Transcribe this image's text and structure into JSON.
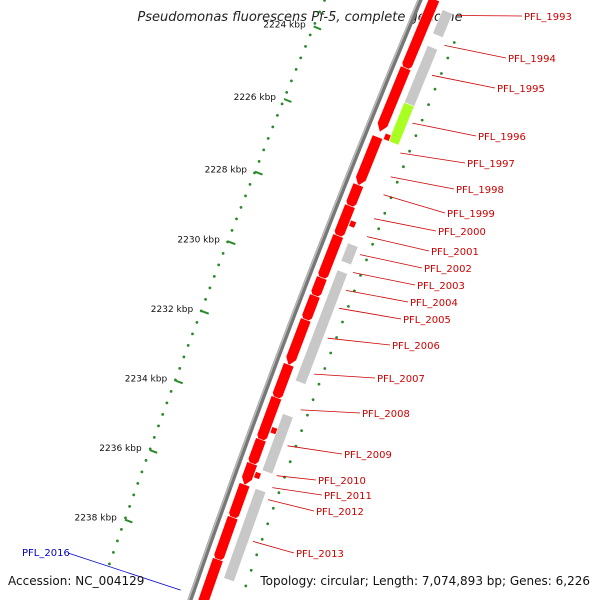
{
  "title": "Pseudomonas fluorescens Pf-5, complete genome",
  "footer": {
    "accession": "Accession: NC_004129",
    "topology": "Topology: circular; Length: 7,074,893 bp; Genes: 6,226"
  },
  "ticks": [
    "2224 kbp",
    "2226 kbp",
    "2228 kbp",
    "2230 kbp",
    "2232 kbp",
    "2234 kbp",
    "2236 kbp",
    "2238 kbp"
  ],
  "genes_right": [
    "PFL_1993",
    "PFL_1994",
    "PFL_1995",
    "PFL_1996",
    "PFL_1997",
    "PFL_1998",
    "PFL_1999",
    "PFL_2000",
    "PFL_2001",
    "PFL_2002",
    "PFL_2003",
    "PFL_2004",
    "PFL_2005",
    "PFL_2006",
    "PFL_2007",
    "PFL_2008",
    "PFL_2009",
    "PFL_2010",
    "PFL_2011",
    "PFL_2012",
    "PFL_2013"
  ],
  "genes_left": [
    "PFL_2016"
  ],
  "colors": {
    "gene_label": "#cc0000",
    "gene_label_left": "#0000cc",
    "forward_cds": "#ff0000",
    "reverse_cds": "#0000ff",
    "gray_feature": "#c8c8c8",
    "highlight_feature": "#aaff22",
    "tick": "#2a8a2a",
    "backbone": "#777777"
  }
}
